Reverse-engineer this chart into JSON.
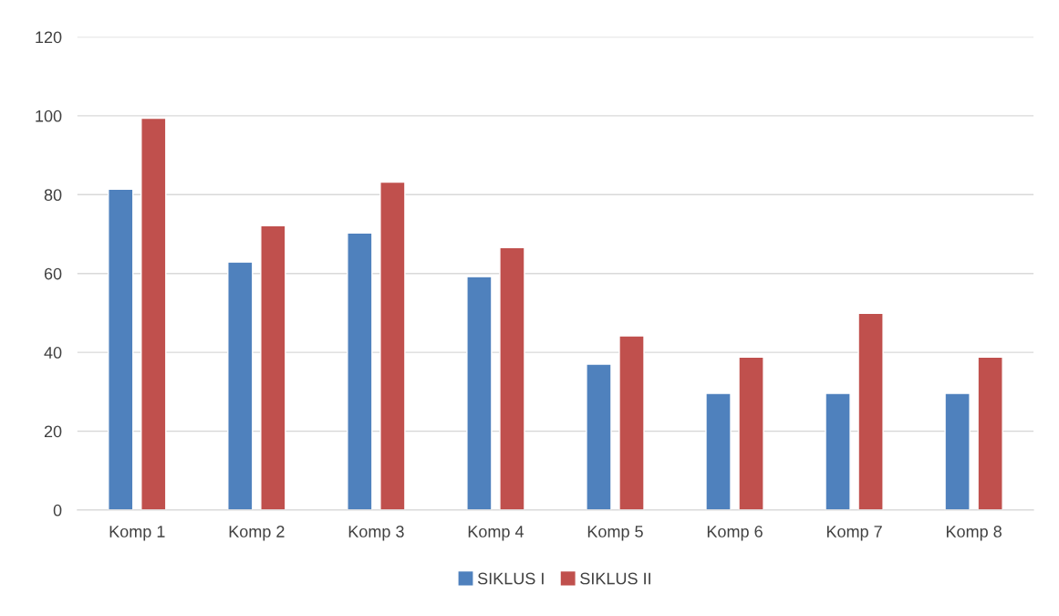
{
  "chart_data": {
    "type": "bar",
    "categories": [
      "Komp 1",
      "Komp 2",
      "Komp 3",
      "Komp 4",
      "Komp 5",
      "Komp 6",
      "Komp 7",
      "Komp 8"
    ],
    "series": [
      {
        "name": "SIKLUS I",
        "color": "#4f81bd",
        "values": [
          81.4,
          62.9,
          70.3,
          59.2,
          37.0,
          29.6,
          29.6,
          29.6
        ]
      },
      {
        "name": "SIKLUS II",
        "color": "#c0504d",
        "values": [
          99.4,
          72.1,
          83.2,
          66.6,
          44.2,
          38.8,
          49.9,
          38.8
        ]
      }
    ],
    "ylim": [
      0,
      120
    ],
    "yticks": [
      0,
      20,
      40,
      60,
      80,
      100,
      120
    ],
    "grid": "y",
    "legend": "bottom"
  }
}
